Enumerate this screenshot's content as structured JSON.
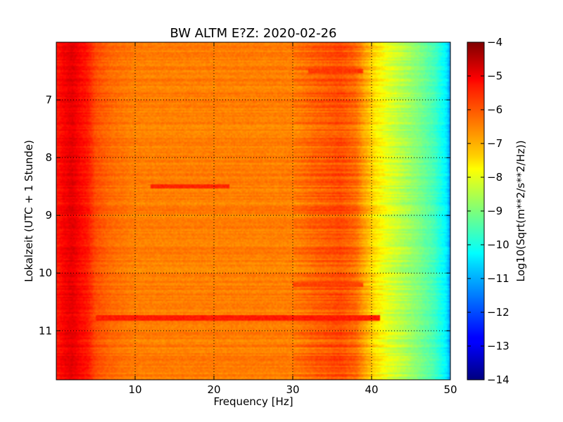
{
  "chart_data": {
    "type": "heatmap",
    "title": "BW ALTM E?Z: 2020-02-26",
    "xlabel": "Frequency [Hz]",
    "ylabel": "Lokalzeit (UTC + 1 Stunde)",
    "xlim": [
      0,
      50
    ],
    "ylim": [
      6.0,
      11.85
    ],
    "y_inverted": true,
    "x_ticks": [
      10,
      20,
      30,
      40,
      50
    ],
    "y_ticks": [
      7,
      8,
      9,
      10,
      11
    ],
    "grid": true,
    "colormap": "jet",
    "colorbar": {
      "label": "Log10(Sqrt(m**2/s**2/Hz))",
      "min": -14,
      "max": -4,
      "ticks": [
        -4,
        -5,
        -6,
        -7,
        -8,
        -9,
        -10,
        -11,
        -12,
        -13,
        -14
      ]
    },
    "level_by_frequency": [
      {
        "hz": 0,
        "value": -5.5
      },
      {
        "hz": 1,
        "value": -5.2
      },
      {
        "hz": 2,
        "value": -5.0
      },
      {
        "hz": 3,
        "value": -5.3
      },
      {
        "hz": 4,
        "value": -5.5
      },
      {
        "hz": 5,
        "value": -6.0
      },
      {
        "hz": 7,
        "value": -6.3
      },
      {
        "hz": 10,
        "value": -6.5
      },
      {
        "hz": 20,
        "value": -6.5
      },
      {
        "hz": 30,
        "value": -6.5
      },
      {
        "hz": 33,
        "value": -6.2
      },
      {
        "hz": 36,
        "value": -6.0
      },
      {
        "hz": 38,
        "value": -6.3
      },
      {
        "hz": 39,
        "value": -6.8
      },
      {
        "hz": 40.5,
        "value": -7.5
      },
      {
        "hz": 42,
        "value": -8.0
      },
      {
        "hz": 44,
        "value": -8.5
      },
      {
        "hz": 46,
        "value": -9.0
      },
      {
        "hz": 48,
        "value": -9.6
      },
      {
        "hz": 49.5,
        "value": -10.4
      },
      {
        "hz": 50,
        "value": -11.3
      }
    ],
    "bands": [
      {
        "time": 10.78,
        "from_hz": 5,
        "to_hz": 41,
        "value": -5.5
      },
      {
        "time": 8.5,
        "from_hz": 12,
        "to_hz": 22,
        "value": -5.6
      },
      {
        "time": 6.5,
        "from_hz": 32,
        "to_hz": 39,
        "value": -5.8
      },
      {
        "time": 10.2,
        "from_hz": 30,
        "to_hz": 39,
        "value": -5.9
      }
    ]
  }
}
